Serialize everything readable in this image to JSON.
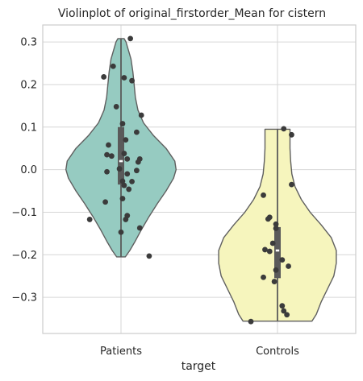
{
  "chart_data": {
    "type": "violin",
    "title": "Violinplot of original_firstorder_Mean for cistern",
    "xlabel": "target",
    "ylabel": "",
    "ylim": [
      -0.385,
      0.34
    ],
    "yticks": [
      -0.3,
      -0.2,
      -0.1,
      0.0,
      0.1,
      0.2,
      0.3
    ],
    "ytick_labels": [
      "−0.3",
      "−0.2",
      "−0.1",
      "0.0",
      "0.1",
      "0.2",
      "0.3"
    ],
    "grid": true,
    "categories": [
      "Patients",
      "Controls"
    ],
    "series": [
      {
        "category": "Patients",
        "color": "#96cbc1",
        "min": -0.205,
        "max": 0.308,
        "box": {
          "q1": -0.035,
          "median": 0.02,
          "q3": 0.1,
          "whisker_low": -0.205,
          "whisker_high": 0.308
        },
        "density": [
          [
            -0.205,
            0.07
          ],
          [
            -0.19,
            0.14
          ],
          [
            -0.17,
            0.22
          ],
          [
            -0.14,
            0.33
          ],
          [
            -0.11,
            0.45
          ],
          [
            -0.08,
            0.58
          ],
          [
            -0.05,
            0.72
          ],
          [
            -0.02,
            0.84
          ],
          [
            0.0,
            0.88
          ],
          [
            0.02,
            0.86
          ],
          [
            0.05,
            0.72
          ],
          [
            0.08,
            0.52
          ],
          [
            0.11,
            0.36
          ],
          [
            0.14,
            0.27
          ],
          [
            0.17,
            0.23
          ],
          [
            0.2,
            0.21
          ],
          [
            0.23,
            0.19
          ],
          [
            0.26,
            0.16
          ],
          [
            0.28,
            0.12
          ],
          [
            0.3,
            0.08
          ],
          [
            0.308,
            0.05
          ]
        ],
        "points": [
          {
            "jitter": 0.06,
            "y": 0.308
          },
          {
            "jitter": -0.05,
            "y": 0.243
          },
          {
            "jitter": -0.11,
            "y": 0.218
          },
          {
            "jitter": 0.02,
            "y": 0.216
          },
          {
            "jitter": 0.07,
            "y": 0.209
          },
          {
            "jitter": -0.03,
            "y": 0.148
          },
          {
            "jitter": 0.13,
            "y": 0.128
          },
          {
            "jitter": 0.01,
            "y": 0.108
          },
          {
            "jitter": 0.1,
            "y": 0.088
          },
          {
            "jitter": 0.03,
            "y": 0.07
          },
          {
            "jitter": -0.08,
            "y": 0.058
          },
          {
            "jitter": 0.02,
            "y": 0.038
          },
          {
            "jitter": -0.09,
            "y": 0.035
          },
          {
            "jitter": -0.06,
            "y": 0.032
          },
          {
            "jitter": 0.04,
            "y": 0.025
          },
          {
            "jitter": 0.12,
            "y": 0.025
          },
          {
            "jitter": 0.11,
            "y": 0.018
          },
          {
            "jitter": -0.01,
            "y": 0.002
          },
          {
            "jitter": 0.1,
            "y": -0.002
          },
          {
            "jitter": -0.09,
            "y": -0.005
          },
          {
            "jitter": 0.04,
            "y": -0.01
          },
          {
            "jitter": 0.01,
            "y": -0.027
          },
          {
            "jitter": 0.07,
            "y": -0.028
          },
          {
            "jitter": 0.02,
            "y": -0.037
          },
          {
            "jitter": 0.05,
            "y": -0.046
          },
          {
            "jitter": 0.01,
            "y": -0.068
          },
          {
            "jitter": -0.1,
            "y": -0.076
          },
          {
            "jitter": 0.04,
            "y": -0.108
          },
          {
            "jitter": 0.03,
            "y": -0.117
          },
          {
            "jitter": -0.2,
            "y": -0.117
          },
          {
            "jitter": 0.12,
            "y": -0.137
          },
          {
            "jitter": 0.0,
            "y": -0.147
          },
          {
            "jitter": 0.18,
            "y": -0.203
          }
        ]
      },
      {
        "category": "Controls",
        "color": "#f6f5bd",
        "min": -0.356,
        "max": 0.095,
        "box": {
          "q1": -0.255,
          "median": -0.19,
          "q3": -0.135,
          "whisker_low": -0.356,
          "whisker_high": 0.095
        },
        "density": [
          [
            -0.356,
            0.55
          ],
          [
            -0.34,
            0.62
          ],
          [
            -0.31,
            0.7
          ],
          [
            -0.28,
            0.8
          ],
          [
            -0.25,
            0.9
          ],
          [
            -0.22,
            0.94
          ],
          [
            -0.19,
            0.94
          ],
          [
            -0.16,
            0.86
          ],
          [
            -0.13,
            0.7
          ],
          [
            -0.1,
            0.52
          ],
          [
            -0.07,
            0.38
          ],
          [
            -0.04,
            0.28
          ],
          [
            -0.01,
            0.23
          ],
          [
            0.02,
            0.21
          ],
          [
            0.05,
            0.2
          ],
          [
            0.075,
            0.2
          ],
          [
            0.095,
            0.2
          ]
        ],
        "points": [
          {
            "jitter": 0.04,
            "y": 0.096
          },
          {
            "jitter": 0.09,
            "y": 0.082
          },
          {
            "jitter": 0.09,
            "y": -0.035
          },
          {
            "jitter": -0.09,
            "y": -0.06
          },
          {
            "jitter": -0.05,
            "y": -0.112
          },
          {
            "jitter": -0.06,
            "y": -0.116
          },
          {
            "jitter": -0.01,
            "y": -0.128
          },
          {
            "jitter": -0.01,
            "y": -0.138
          },
          {
            "jitter": -0.03,
            "y": -0.173
          },
          {
            "jitter": -0.08,
            "y": -0.188
          },
          {
            "jitter": -0.05,
            "y": -0.192
          },
          {
            "jitter": 0.03,
            "y": -0.212
          },
          {
            "jitter": 0.07,
            "y": -0.227
          },
          {
            "jitter": -0.01,
            "y": -0.236
          },
          {
            "jitter": -0.09,
            "y": -0.253
          },
          {
            "jitter": -0.02,
            "y": -0.263
          },
          {
            "jitter": 0.03,
            "y": -0.32
          },
          {
            "jitter": 0.04,
            "y": -0.332
          },
          {
            "jitter": 0.06,
            "y": -0.341
          },
          {
            "jitter": -0.17,
            "y": -0.357
          }
        ]
      }
    ]
  }
}
